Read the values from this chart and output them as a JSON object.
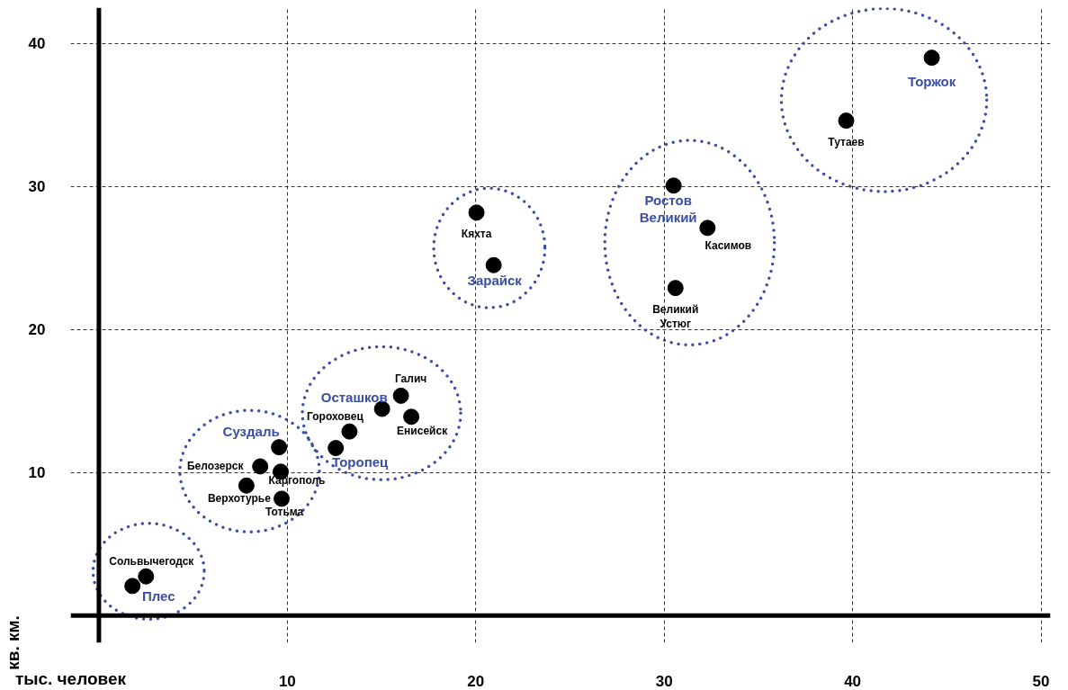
{
  "chart_data": {
    "type": "scatter",
    "xlabel": "тыс. человек",
    "ylabel": "кв. км.",
    "xlim": [
      -1.5,
      50.5
    ],
    "ylim": [
      -1.9,
      42.5
    ],
    "xticks": [
      10,
      20,
      30,
      40,
      50
    ],
    "yticks": [
      10,
      20,
      30,
      40
    ],
    "grid": true,
    "marker": "circle",
    "series": [
      {
        "color": "#000000",
        "x": [
          2.5,
          7.83,
          8.56,
          9.65,
          9.7,
          13.3,
          16.03,
          16.58,
          20.04,
          32.3,
          30.6,
          39.66
        ],
        "values": [
          2.74,
          9.09,
          10.43,
          10.06,
          8.17,
          12.87,
          15.37,
          13.9,
          28.17,
          27.1,
          22.9,
          34.6
        ]
      },
      {
        "color": "#000000",
        "x": [
          1.78,
          9.56,
          12.57,
          15.03,
          20.95,
          30.5,
          44.2
        ],
        "values": [
          2.07,
          11.77,
          11.71,
          14.45,
          24.5,
          30.06,
          39.0
        ]
      }
    ],
    "annotations": [
      {
        "text": "Плес",
        "x": 1.78,
        "y": 2.07
      },
      {
        "text": "Сольвычегодск",
        "x": 2.5,
        "y": 2.74
      },
      {
        "text": "Верхотурье",
        "x": 7.83,
        "y": 9.09
      },
      {
        "text": "Белозерск",
        "x": 8.56,
        "y": 10.43
      },
      {
        "text": "Суздаль",
        "x": 9.56,
        "y": 11.77
      },
      {
        "text": "Каргополь",
        "x": 9.65,
        "y": 10.06
      },
      {
        "text": "Тотьма",
        "x": 9.7,
        "y": 8.17
      },
      {
        "text": "Торопец",
        "x": 12.57,
        "y": 11.71
      },
      {
        "text": "Гороховец",
        "x": 13.3,
        "y": 12.87
      },
      {
        "text": "Осташков",
        "x": 15.03,
        "y": 14.45
      },
      {
        "text": "Галич",
        "x": 16.03,
        "y": 15.37
      },
      {
        "text": "Енисейск",
        "x": 16.58,
        "y": 13.9
      },
      {
        "text": "Кяхта",
        "x": 20.04,
        "y": 28.17
      },
      {
        "text": "Зарайск",
        "x": 20.95,
        "y": 24.5
      },
      {
        "text": "Ростов\nВеликий",
        "x": 30.5,
        "y": 30.06
      },
      {
        "text": "Касимов",
        "x": 32.3,
        "y": 27.1
      },
      {
        "text": "Великий\nУстюг",
        "x": 30.6,
        "y": 22.9
      },
      {
        "text": "Тутаев",
        "x": 39.66,
        "y": 34.6
      },
      {
        "text": "Торжок",
        "x": 44.2,
        "y": 39.0
      }
    ]
  }
}
